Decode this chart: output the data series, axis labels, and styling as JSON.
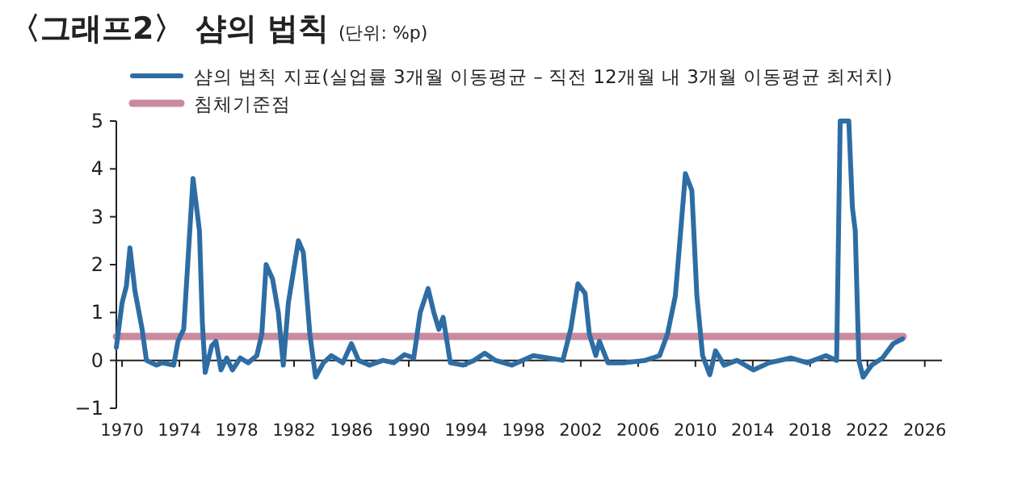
{
  "chart_data": {
    "type": "line",
    "title": "〈그래프2〉 샴의 법칙",
    "subtitle": "(단위: %p)",
    "xlim": [
      1969.6,
      2027.2
    ],
    "ylim": [
      -1,
      5
    ],
    "xticks": [
      1970,
      1974,
      1978,
      1982,
      1986,
      1990,
      1994,
      1998,
      2002,
      2006,
      2010,
      2014,
      2018,
      2022,
      2026
    ],
    "yticks": [
      -1,
      0,
      1,
      2,
      3,
      4,
      5
    ],
    "legend": "top left",
    "series": [
      {
        "name": "샴의 법칙 지표(실업률 3개월 이동평균 – 직전 12개월 내 3개월 이동평균 최저치)",
        "color": "#2e6da4",
        "x": [
          1969.6,
          1970,
          1970.3,
          1970.55,
          1970.9,
          1971.4,
          1971.7,
          1972.4,
          1972.8,
          1973.6,
          1973.9,
          1974.3,
          1974.95,
          1975.4,
          1975.6,
          1975.8,
          1976.25,
          1976.55,
          1976.9,
          1977.3,
          1977.7,
          1978.25,
          1978.8,
          1979.4,
          1979.75,
          1980.05,
          1980.5,
          1980.9,
          1981.25,
          1981.6,
          1982.3,
          1982.65,
          1983.1,
          1983.5,
          1984.05,
          1984.6,
          1985.4,
          1986,
          1986.5,
          1987.25,
          1988.2,
          1988.95,
          1989.7,
          1990.35,
          1990.8,
          1991.35,
          1991.75,
          1992.1,
          1992.4,
          1992.9,
          1993.8,
          1994.55,
          1995.3,
          1996.05,
          1997.2,
          1998.7,
          2000.75,
          2001.3,
          2001.8,
          2002.3,
          2002.6,
          2003.05,
          2003.3,
          2003.9,
          2005.05,
          2006.5,
          2007.5,
          2008.05,
          2008.6,
          2009.3,
          2009.75,
          2010.1,
          2010.5,
          2011,
          2011.4,
          2012,
          2012.9,
          2014.05,
          2015.15,
          2016.65,
          2017.8,
          2019.1,
          2019.85,
          2020.1,
          2020.7,
          2020.95,
          2021.15,
          2021.4,
          2021.7,
          2022.3,
          2023.05,
          2023.8,
          2024.45
        ],
        "values": [
          0.27,
          1.2,
          1.55,
          2.35,
          1.45,
          0.65,
          0,
          -0.1,
          -0.05,
          -0.1,
          0.4,
          0.65,
          3.8,
          2.7,
          0.8,
          -0.25,
          0.3,
          0.4,
          -0.2,
          0.05,
          -0.2,
          0.05,
          -0.05,
          0.1,
          0.55,
          2.0,
          1.7,
          1.0,
          -0.1,
          1.2,
          2.5,
          2.25,
          0.55,
          -0.35,
          -0.05,
          0.1,
          -0.05,
          0.35,
          0,
          -0.1,
          0,
          -0.05,
          0.12,
          0.05,
          1.0,
          1.5,
          1.0,
          0.65,
          0.9,
          -0.05,
          -0.1,
          0,
          0.15,
          0,
          -0.1,
          0.1,
          0,
          0.65,
          1.6,
          1.4,
          0.55,
          0.1,
          0.4,
          -0.05,
          -0.05,
          0,
          0.1,
          0.55,
          1.35,
          3.9,
          3.55,
          1.35,
          0.1,
          -0.3,
          0.2,
          -0.1,
          0,
          -0.2,
          -0.05,
          0.05,
          -0.05,
          0.1,
          0,
          5,
          5,
          3.2,
          2.7,
          0,
          -0.35,
          -0.1,
          0.05,
          0.35,
          0.45
        ]
      },
      {
        "name": "침체기준점",
        "color": "#c98aa0",
        "x": [
          1969.6,
          2024.5
        ],
        "values": [
          0.5,
          0.5
        ]
      }
    ]
  }
}
